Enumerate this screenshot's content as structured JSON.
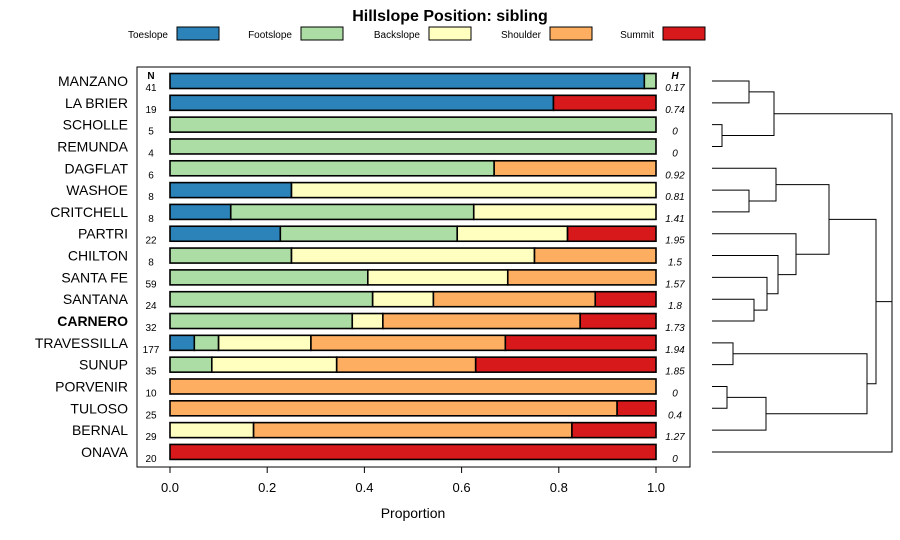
{
  "chart_data": {
    "type": "bar",
    "stacked": true,
    "orientation": "horizontal",
    "title": "Hillslope Position: sibling",
    "xlabel": "Proportion",
    "xlim": [
      0,
      1
    ],
    "xticks": [
      0.0,
      0.2,
      0.4,
      0.6,
      0.8,
      1.0
    ],
    "xtick_labels": [
      "0.0",
      "0.2",
      "0.4",
      "0.6",
      "0.8",
      "1.0"
    ],
    "n_header": "N",
    "h_header": "H",
    "legend": [
      {
        "name": "Toeslope",
        "color": "#2b83ba"
      },
      {
        "name": "Footslope",
        "color": "#abdda4"
      },
      {
        "name": "Backslope",
        "color": "#ffffbf"
      },
      {
        "name": "Shoulder",
        "color": "#fdae61"
      },
      {
        "name": "Summit",
        "color": "#d7191c"
      }
    ],
    "categories": [
      "MANZANO",
      "LA BRIER",
      "SCHOLLE",
      "REMUNDA",
      "DAGFLAT",
      "WASHOE",
      "CRITCHELL",
      "PARTRI",
      "CHILTON",
      "SANTA FE",
      "SANTANA",
      "CARNERO",
      "TRAVESSILLA",
      "SUNUP",
      "PORVENIR",
      "TULOSO",
      "BERNAL",
      "ONAVA"
    ],
    "highlight": "CARNERO",
    "n": [
      "41",
      "19",
      "5",
      "4",
      "6",
      "8",
      "8",
      "22",
      "8",
      "59",
      "24",
      "32",
      "177",
      "35",
      "10",
      "25",
      "29",
      "20"
    ],
    "h": [
      "0.17",
      "0.74",
      "0",
      "0",
      "0.92",
      "0.81",
      "1.41",
      "1.95",
      "1.5",
      "1.57",
      "1.8",
      "1.73",
      "1.94",
      "1.85",
      "0",
      "0.4",
      "1.27",
      "0"
    ],
    "series": [
      {
        "name": "Toeslope",
        "values": [
          0.976,
          0.789,
          0,
          0,
          0,
          0.25,
          0.125,
          0.227,
          0,
          0,
          0,
          0,
          0.05,
          0,
          0,
          0,
          0,
          0
        ]
      },
      {
        "name": "Footslope",
        "values": [
          0.024,
          0,
          1.0,
          1.0,
          0.667,
          0,
          0.5,
          0.364,
          0.25,
          0.407,
          0.417,
          0.375,
          0.05,
          0.086,
          0,
          0,
          0,
          0
        ]
      },
      {
        "name": "Backslope",
        "values": [
          0,
          0,
          0,
          0,
          0,
          0.75,
          0.375,
          0.227,
          0.5,
          0.288,
          0.125,
          0.063,
          0.19,
          0.257,
          0,
          0,
          0.172,
          0
        ]
      },
      {
        "name": "Shoulder",
        "values": [
          0,
          0,
          0,
          0,
          0.333,
          0,
          0,
          0,
          0.25,
          0.305,
          0.333,
          0.406,
          0.4,
          0.286,
          1.0,
          0.92,
          0.655,
          0
        ]
      },
      {
        "name": "Summit",
        "values": [
          0,
          0.211,
          0,
          0,
          0,
          0,
          0,
          0.182,
          0,
          0,
          0.125,
          0.156,
          0.31,
          0.371,
          0,
          0.08,
          0.173,
          1.0
        ]
      }
    ],
    "dendrogram_merges": [
      [
        0,
        1
      ],
      [
        2,
        3
      ],
      [
        -1,
        -2
      ],
      [
        5,
        6
      ],
      [
        4,
        -4
      ],
      [
        10,
        11
      ],
      [
        9,
        -6
      ],
      [
        8,
        -7
      ],
      [
        7,
        -8
      ],
      [
        -5,
        -9
      ],
      [
        12,
        13
      ],
      [
        14,
        15
      ],
      [
        -12,
        16
      ],
      [
        -11,
        -13
      ],
      [
        -10,
        -14
      ],
      [
        -3,
        -15
      ],
      [
        -16,
        17
      ]
    ]
  }
}
